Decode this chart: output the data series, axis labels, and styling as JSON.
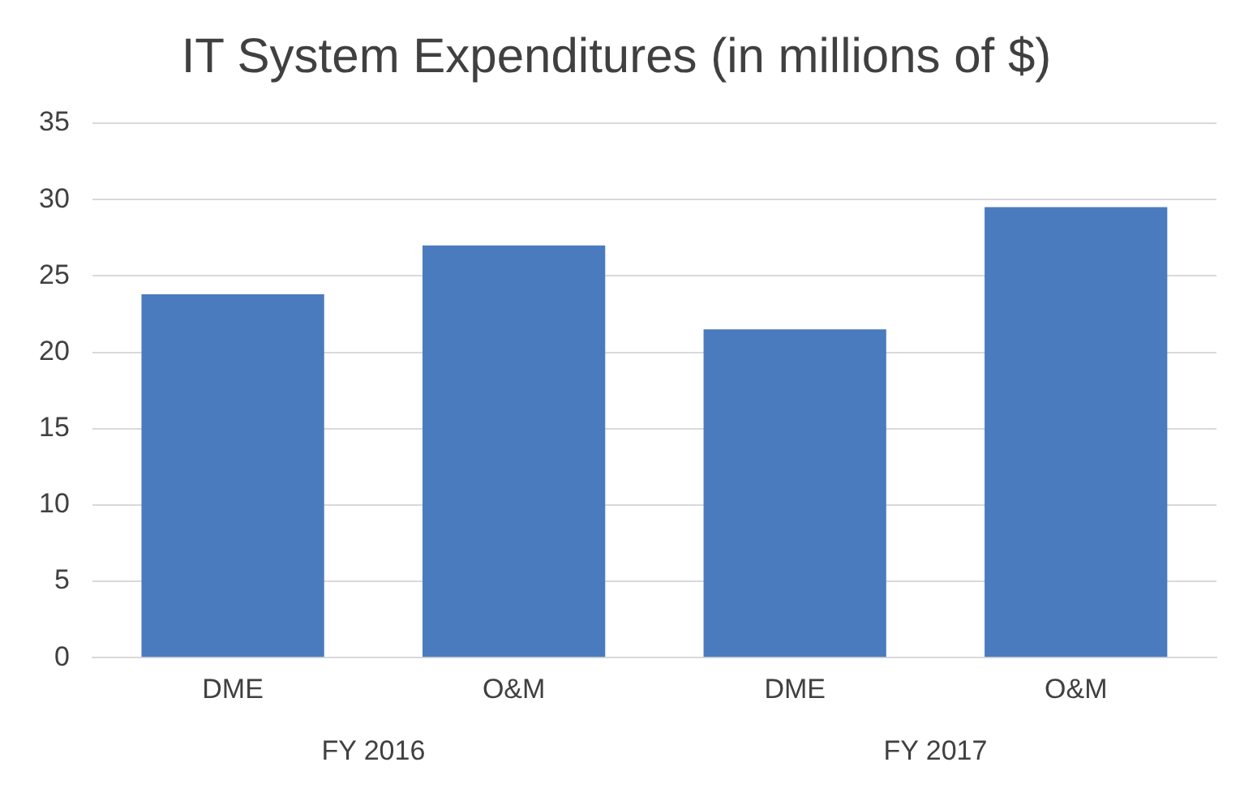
{
  "chart_data": {
    "type": "bar",
    "title": "IT System Expenditures (in millions of $)",
    "categories": [
      "DME",
      "O&M",
      "DME",
      "O&M"
    ],
    "values": [
      23.8,
      27,
      21.5,
      29.5
    ],
    "color": "#4a7bbf",
    "ylim": [
      0,
      35
    ],
    "yticks": [
      0,
      5,
      10,
      15,
      20,
      25,
      30,
      35
    ],
    "grid": "y",
    "annotations": [
      "FY 2016",
      "FY 2017"
    ]
  }
}
